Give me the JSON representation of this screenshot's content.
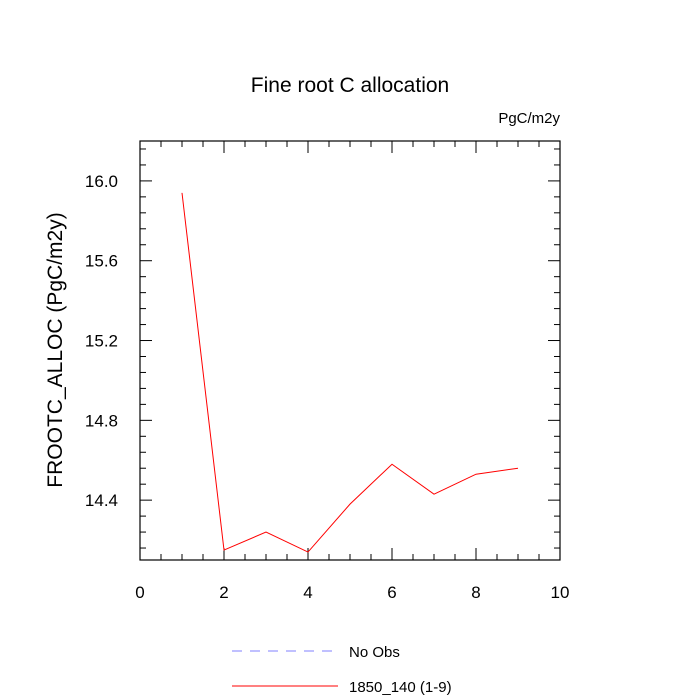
{
  "chart_data": {
    "type": "line",
    "title": "Fine root C allocation",
    "subtitle": "PgC/m2y",
    "xlabel": "",
    "ylabel": "FROOTC_ALLOC  (PgC/m2y)",
    "xlim": [
      0,
      10
    ],
    "ylim": [
      14.1,
      16.2
    ],
    "x_ticks": [
      0,
      2,
      4,
      6,
      8,
      10
    ],
    "x_tick_labels": [
      "0",
      "2",
      "4",
      "6",
      "8",
      "10"
    ],
    "y_ticks": [
      14.4,
      14.8,
      15.2,
      15.6,
      16.0
    ],
    "y_tick_labels": [
      "14.4",
      "14.8",
      "15.2",
      "15.6",
      "16.0"
    ],
    "grid": false,
    "legend_placement": "bottom",
    "series": [
      {
        "name": "No Obs",
        "color": "#8080ff",
        "dash": "dashed",
        "x": [],
        "values": []
      },
      {
        "name": "1850_140 (1-9)",
        "color": "#ff0000",
        "dash": "solid",
        "x": [
          1,
          2,
          3,
          4,
          5,
          6,
          7,
          8,
          9
        ],
        "values": [
          15.94,
          14.15,
          14.24,
          14.14,
          14.38,
          14.58,
          14.43,
          14.53,
          14.56
        ]
      }
    ]
  }
}
